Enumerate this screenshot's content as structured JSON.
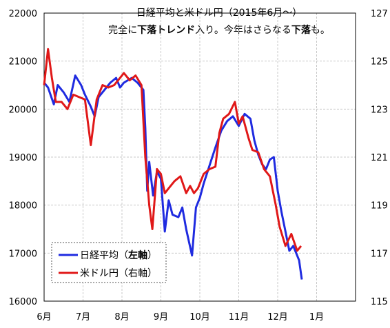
{
  "chart_data": {
    "type": "line",
    "title_line1": "日経平均と米ドル円（2015年6月～）",
    "title_line2_parts": [
      {
        "text": "完全に",
        "bold": false
      },
      {
        "text": "下落トレンド",
        "bold": true
      },
      {
        "text": "入り。今年はさらなる",
        "bold": false
      },
      {
        "text": "下落",
        "bold": true
      },
      {
        "text": "も。",
        "bold": false
      }
    ],
    "x_ticks": [
      "6月",
      "7月",
      "8月",
      "9月",
      "10月",
      "11月",
      "12月",
      "1月"
    ],
    "y_left": {
      "min": 16000,
      "max": 22000,
      "ticks": [
        "16000",
        "17000",
        "18000",
        "19000",
        "20000",
        "21000",
        "22000"
      ]
    },
    "y_right": {
      "min": 115,
      "max": 127,
      "ticks": [
        "115",
        "117",
        "119",
        "121",
        "123",
        "125",
        "127"
      ]
    },
    "grid": true,
    "legend_position": "bottom-left",
    "series": [
      {
        "name": "日経平均",
        "axis_note_prefix": "（",
        "axis_note": "左軸",
        "axis_note_suffix": "）",
        "axis": "left",
        "color": "#1f2be0",
        "points": [
          [
            0,
            20550
          ],
          [
            0.1,
            20450
          ],
          [
            0.25,
            20100
          ],
          [
            0.35,
            20500
          ],
          [
            0.5,
            20350
          ],
          [
            0.65,
            20150
          ],
          [
            0.8,
            20700
          ],
          [
            0.95,
            20500
          ],
          [
            1.05,
            20300
          ],
          [
            1.2,
            20050
          ],
          [
            1.3,
            19850
          ],
          [
            1.4,
            20250
          ],
          [
            1.55,
            20400
          ],
          [
            1.7,
            20550
          ],
          [
            1.85,
            20650
          ],
          [
            1.95,
            20450
          ],
          [
            2.05,
            20550
          ],
          [
            2.25,
            20650
          ],
          [
            2.4,
            20550
          ],
          [
            2.55,
            20400
          ],
          [
            2.6,
            19600
          ],
          [
            2.65,
            18300
          ],
          [
            2.7,
            18900
          ],
          [
            2.8,
            18200
          ],
          [
            2.9,
            18700
          ],
          [
            3.0,
            18550
          ],
          [
            3.1,
            17450
          ],
          [
            3.2,
            18100
          ],
          [
            3.3,
            17800
          ],
          [
            3.45,
            17750
          ],
          [
            3.55,
            17950
          ],
          [
            3.65,
            17500
          ],
          [
            3.8,
            16950
          ],
          [
            3.9,
            17950
          ],
          [
            4.0,
            18150
          ],
          [
            4.1,
            18450
          ],
          [
            4.2,
            18700
          ],
          [
            4.3,
            18950
          ],
          [
            4.4,
            19200
          ],
          [
            4.55,
            19550
          ],
          [
            4.7,
            19750
          ],
          [
            4.85,
            19850
          ],
          [
            5.0,
            19650
          ],
          [
            5.15,
            19900
          ],
          [
            5.3,
            19800
          ],
          [
            5.4,
            19350
          ],
          [
            5.5,
            19050
          ],
          [
            5.6,
            18850
          ],
          [
            5.7,
            18750
          ],
          [
            5.8,
            18950
          ],
          [
            5.9,
            19000
          ],
          [
            6.0,
            18300
          ],
          [
            6.1,
            17850
          ],
          [
            6.2,
            17450
          ],
          [
            6.3,
            17050
          ],
          [
            6.4,
            17150
          ],
          [
            6.55,
            16850
          ],
          [
            6.62,
            16450
          ]
        ]
      },
      {
        "name": "米ドル円",
        "axis_note_prefix": "（",
        "axis_note": "右軸",
        "axis_note_suffix": "）",
        "axis": "right",
        "color": "#e01818",
        "points": [
          [
            0,
            124.0
          ],
          [
            0.1,
            125.5
          ],
          [
            0.2,
            124.3
          ],
          [
            0.3,
            123.3
          ],
          [
            0.45,
            123.3
          ],
          [
            0.6,
            123.0
          ],
          [
            0.75,
            123.6
          ],
          [
            0.9,
            123.5
          ],
          [
            1.05,
            123.4
          ],
          [
            1.2,
            121.5
          ],
          [
            1.35,
            123.4
          ],
          [
            1.5,
            124.0
          ],
          [
            1.65,
            123.9
          ],
          [
            1.8,
            124.0
          ],
          [
            1.95,
            124.3
          ],
          [
            2.05,
            124.5
          ],
          [
            2.2,
            124.2
          ],
          [
            2.35,
            124.4
          ],
          [
            2.5,
            124.0
          ],
          [
            2.6,
            121.0
          ],
          [
            2.7,
            119.0
          ],
          [
            2.78,
            118.0
          ],
          [
            2.9,
            120.5
          ],
          [
            3.0,
            120.3
          ],
          [
            3.1,
            119.5
          ],
          [
            3.25,
            119.8
          ],
          [
            3.35,
            120.0
          ],
          [
            3.5,
            120.2
          ],
          [
            3.65,
            119.5
          ],
          [
            3.75,
            119.8
          ],
          [
            3.85,
            119.5
          ],
          [
            3.95,
            119.7
          ],
          [
            4.1,
            120.3
          ],
          [
            4.25,
            120.5
          ],
          [
            4.4,
            120.6
          ],
          [
            4.5,
            122.0
          ],
          [
            4.6,
            122.6
          ],
          [
            4.75,
            122.8
          ],
          [
            4.9,
            123.3
          ],
          [
            5.0,
            122.4
          ],
          [
            5.1,
            122.7
          ],
          [
            5.25,
            121.8
          ],
          [
            5.35,
            121.3
          ],
          [
            5.5,
            121.2
          ],
          [
            5.65,
            120.5
          ],
          [
            5.8,
            120.2
          ],
          [
            5.95,
            119.0
          ],
          [
            6.05,
            118.1
          ],
          [
            6.2,
            117.3
          ],
          [
            6.35,
            117.8
          ],
          [
            6.5,
            117.1
          ],
          [
            6.6,
            117.3
          ]
        ]
      }
    ]
  }
}
